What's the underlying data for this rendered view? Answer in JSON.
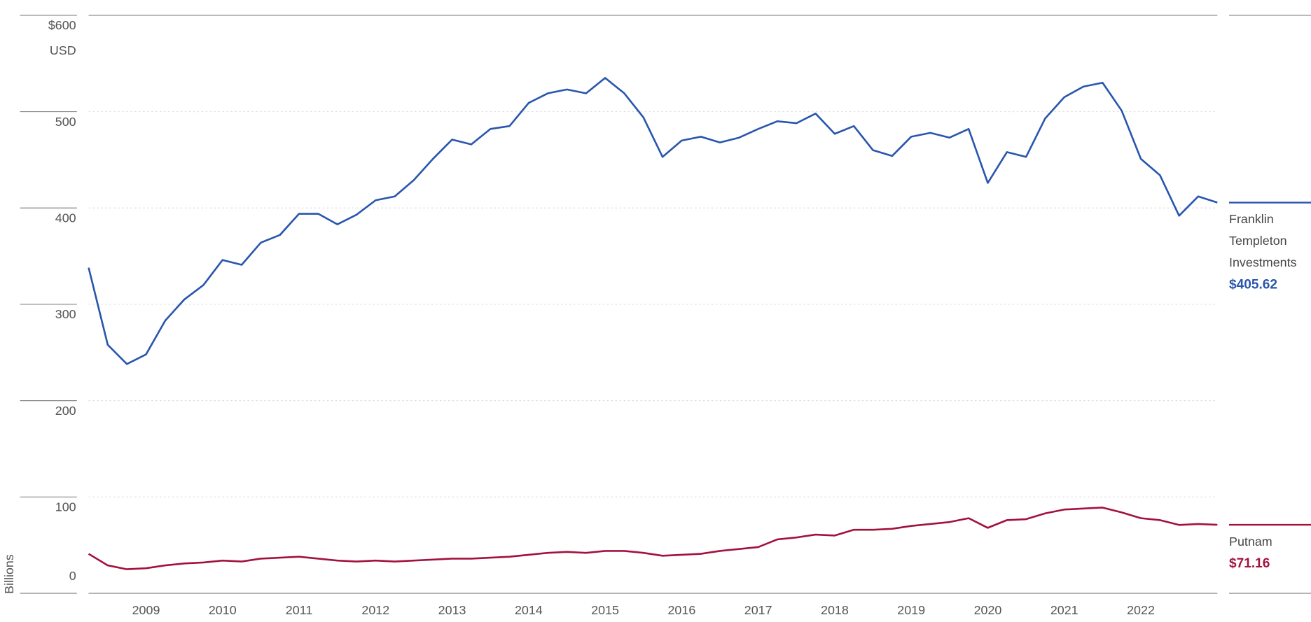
{
  "chart_data": {
    "type": "line",
    "y_label": "Billions",
    "y_unit": "USD",
    "x": [
      2008.25,
      2008.5,
      2008.75,
      2009,
      2009.25,
      2009.5,
      2009.75,
      2010,
      2010.25,
      2010.5,
      2010.75,
      2011,
      2011.25,
      2011.5,
      2011.75,
      2012,
      2012.25,
      2012.5,
      2012.75,
      2013,
      2013.25,
      2013.5,
      2013.75,
      2014,
      2014.25,
      2014.5,
      2014.75,
      2015,
      2015.25,
      2015.5,
      2015.75,
      2016,
      2016.25,
      2016.5,
      2016.75,
      2017,
      2017.25,
      2017.5,
      2017.75,
      2018,
      2018.25,
      2018.5,
      2018.75,
      2019,
      2019.25,
      2019.5,
      2019.75,
      2020,
      2020.25,
      2020.5,
      2020.75,
      2021,
      2021.25,
      2021.5,
      2021.75,
      2022,
      2022.25,
      2022.5,
      2022.75,
      2023
    ],
    "xlim": [
      2008.25,
      2023
    ],
    "xticks": [
      2009,
      2010,
      2011,
      2012,
      2013,
      2014,
      2015,
      2016,
      2017,
      2018,
      2019,
      2020,
      2021,
      2022
    ],
    "ylim": [
      0,
      600
    ],
    "yticks": [
      0,
      100,
      200,
      300,
      400,
      500,
      {
        "value": 600,
        "label": "$600"
      }
    ],
    "grid": true,
    "legend": "right",
    "series": [
      {
        "name": "Franklin Templeton Investments",
        "color": "#2956ad",
        "values": [
          338,
          258,
          238,
          248,
          283,
          305,
          320,
          346,
          341,
          364,
          372,
          394,
          394,
          383,
          393,
          408,
          412,
          429,
          451,
          471,
          466,
          482,
          485,
          509,
          519,
          523,
          519,
          535,
          519,
          494,
          453,
          470,
          474,
          468,
          473,
          482,
          490,
          488,
          498,
          477,
          485,
          460,
          454,
          474,
          478,
          473,
          482,
          426,
          458,
          453,
          493,
          515,
          526,
          530,
          501,
          451,
          434,
          392,
          412,
          405.62
        ],
        "value_labels": [
          null,
          null,
          null,
          null,
          null,
          null,
          null,
          null,
          null,
          null,
          null,
          null,
          null,
          null,
          null,
          null,
          null,
          null,
          null,
          null,
          null,
          null,
          null,
          null,
          null,
          null,
          null,
          null,
          null,
          null,
          null,
          null,
          null,
          null,
          null,
          null,
          null,
          null,
          null,
          null,
          null,
          null,
          null,
          null,
          null,
          null,
          null,
          null,
          null,
          null,
          null,
          null,
          null,
          null,
          null,
          null,
          null,
          null,
          null,
          "$405.62"
        ]
      },
      {
        "name": "Putnam",
        "color": "#a3123d",
        "values": [
          41,
          29,
          25,
          26,
          29,
          31,
          32,
          34,
          33,
          36,
          37,
          38,
          36,
          34,
          33,
          34,
          33,
          34,
          35,
          36,
          36,
          37,
          38,
          40,
          42,
          43,
          42,
          44,
          44,
          42,
          39,
          40,
          41,
          44,
          46,
          48,
          56,
          58,
          61,
          60,
          66,
          66,
          67,
          70,
          72,
          74,
          78,
          68,
          76,
          77,
          83,
          87,
          88,
          89,
          84,
          78,
          76,
          71,
          72,
          71.16
        ],
        "value_labels": [
          null,
          null,
          null,
          null,
          null,
          null,
          null,
          null,
          null,
          null,
          null,
          null,
          null,
          null,
          null,
          null,
          null,
          null,
          null,
          null,
          null,
          null,
          null,
          null,
          null,
          null,
          null,
          null,
          null,
          null,
          null,
          null,
          null,
          null,
          null,
          null,
          null,
          null,
          null,
          null,
          null,
          null,
          null,
          null,
          null,
          null,
          null,
          null,
          null,
          null,
          null,
          null,
          null,
          null,
          null,
          null,
          null,
          null,
          null,
          "$71.16"
        ]
      }
    ]
  }
}
